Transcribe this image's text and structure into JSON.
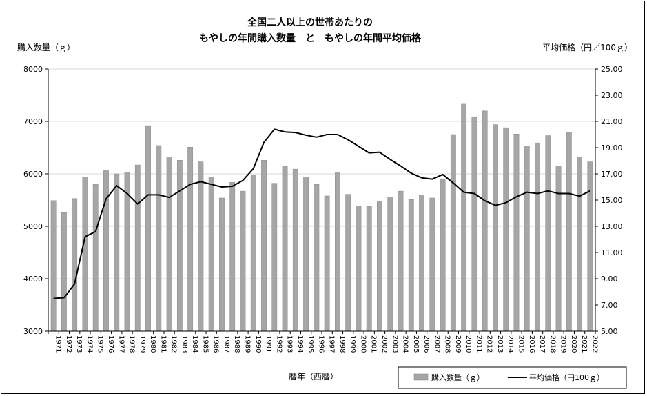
{
  "chart_data": {
    "type": "bar",
    "title_line1": "全国二人以上の世帯あたりの",
    "title_line2": "もやしの年間購入数量　と　もやしの年間平均価格",
    "ylabel_left": "購入数量（ｇ）",
    "ylabel_right": "平均価格（円／100ｇ）",
    "xlabel": "暦年（西暦）",
    "ylim_left": [
      3000,
      8000
    ],
    "ylim_right": [
      5.0,
      25.0
    ],
    "yticks_left": [
      "3000",
      "4000",
      "5000",
      "6000",
      "7000",
      "8000"
    ],
    "yticks_right": [
      "5.00",
      "7.00",
      "9.00",
      "11.00",
      "13.00",
      "15.00",
      "17.00",
      "19.00",
      "21.00",
      "23.00",
      "25.00"
    ],
    "legend_position": "bottom-right",
    "categories": [
      "1971",
      "1972",
      "1973",
      "1974",
      "1975",
      "1976",
      "1977",
      "1978",
      "1979",
      "1980",
      "1981",
      "1982",
      "1983",
      "1984",
      "1985",
      "1986",
      "1987",
      "1988",
      "1989",
      "1990",
      "1991",
      "1992",
      "1993",
      "1994",
      "1995",
      "1996",
      "1997",
      "1998",
      "1999",
      "2000",
      "2001",
      "2002",
      "2003",
      "2004",
      "2005",
      "2006",
      "2007",
      "2008",
      "2009",
      "2010",
      "2011",
      "2012",
      "2013",
      "2014",
      "2015",
      "2016",
      "2017",
      "2018",
      "2019",
      "2020",
      "2021",
      "2022"
    ],
    "series": [
      {
        "name": "購入数量（ｇ）",
        "kind": "bar",
        "axis": "left",
        "color": "#a6a6a6",
        "values": [
          5490,
          5260,
          5530,
          5940,
          5800,
          6060,
          6000,
          6030,
          6170,
          6920,
          6540,
          6310,
          6260,
          6510,
          6230,
          5940,
          5540,
          5840,
          5670,
          5980,
          6260,
          5820,
          6140,
          6090,
          5940,
          5800,
          5580,
          6020,
          5610,
          5390,
          5380,
          5480,
          5560,
          5670,
          5510,
          5600,
          5540,
          5890,
          6750,
          7330,
          7090,
          7200,
          6940,
          6880,
          6760,
          6530,
          6590,
          6730,
          6150,
          6790,
          6310,
          6230
        ]
      },
      {
        "name": "平均価格（円100ｇ）",
        "kind": "line",
        "axis": "right",
        "color": "#000000",
        "values": [
          7.5,
          7.55,
          8.6,
          12.2,
          12.6,
          15.1,
          16.1,
          15.5,
          14.7,
          15.4,
          15.4,
          15.2,
          15.7,
          16.2,
          16.4,
          16.2,
          16.0,
          16.05,
          16.5,
          17.4,
          19.4,
          20.4,
          20.2,
          20.15,
          19.95,
          19.8,
          20.0,
          20.0,
          19.6,
          19.1,
          18.6,
          18.65,
          18.1,
          17.6,
          17.05,
          16.7,
          16.6,
          16.95,
          16.3,
          15.6,
          15.5,
          14.95,
          14.6,
          14.8,
          15.25,
          15.6,
          15.5,
          15.7,
          15.5,
          15.5,
          15.3,
          15.7
        ]
      }
    ]
  },
  "legend": {
    "bar_label": "購入数量（ｇ）",
    "line_label": "平均価格（円100ｇ）"
  }
}
